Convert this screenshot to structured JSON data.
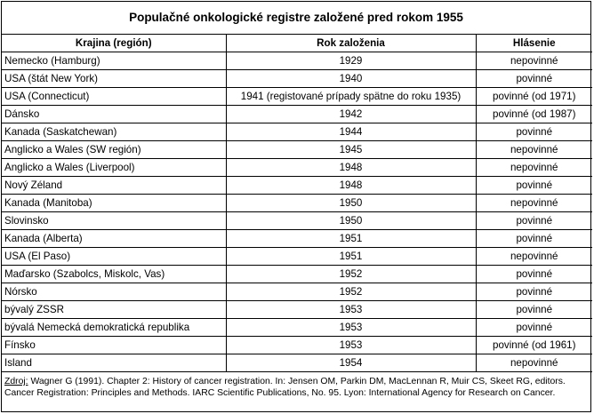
{
  "title": "Populačné onkologické registre založené pred rokom 1955",
  "headers": [
    "Krajina (región)",
    "Rok založenia",
    "Hlásenie"
  ],
  "rows": [
    [
      "Nemecko (Hamburg)",
      "1929",
      "nepovinné"
    ],
    [
      "USA (štát New York)",
      "1940",
      "povinné"
    ],
    [
      "USA (Connecticut)",
      "1941 (registované prípady spätne do roku 1935)",
      "povinné (od 1971)"
    ],
    [
      "Dánsko",
      "1942",
      "povinné (od 1987)"
    ],
    [
      "Kanada (Saskatchewan)",
      "1944",
      "povinné"
    ],
    [
      "Anglicko a Wales (SW región)",
      "1945",
      "nepovinné"
    ],
    [
      "Anglicko a Wales (Liverpool)",
      "1948",
      "nepovinné"
    ],
    [
      "Nový Zéland",
      "1948",
      "povinné"
    ],
    [
      "Kanada (Manitoba)",
      "1950",
      "nepovinné"
    ],
    [
      "Slovinsko",
      "1950",
      "povinné"
    ],
    [
      "Kanada (Alberta)",
      "1951",
      "povinné"
    ],
    [
      "USA (El Paso)",
      "1951",
      "nepovinné"
    ],
    [
      "Maďarsko (Szabolcs, Miskolc, Vas)",
      "1952",
      "povinné"
    ],
    [
      "Nórsko",
      "1952",
      "povinné"
    ],
    [
      "bývalý ZSSR",
      "1953",
      "povinné"
    ],
    [
      "bývalá Nemecká demokratická republika",
      "1953",
      "povinné"
    ],
    [
      "Fínsko",
      "1953",
      "povinné (od 1961)"
    ],
    [
      "Island",
      "1954",
      "nepovinné"
    ]
  ],
  "source": {
    "label": "Zdroj:",
    "text": " Wagner G (1991). Chapter 2: History of cancer registration. In: Jensen OM, Parkin DM, MacLennan R, Muir CS, Skeet RG, editors. Cancer Registration: Principles and Methods. IARC Scientific Publications, No. 95. Lyon: International Agency for Research on Cancer."
  }
}
